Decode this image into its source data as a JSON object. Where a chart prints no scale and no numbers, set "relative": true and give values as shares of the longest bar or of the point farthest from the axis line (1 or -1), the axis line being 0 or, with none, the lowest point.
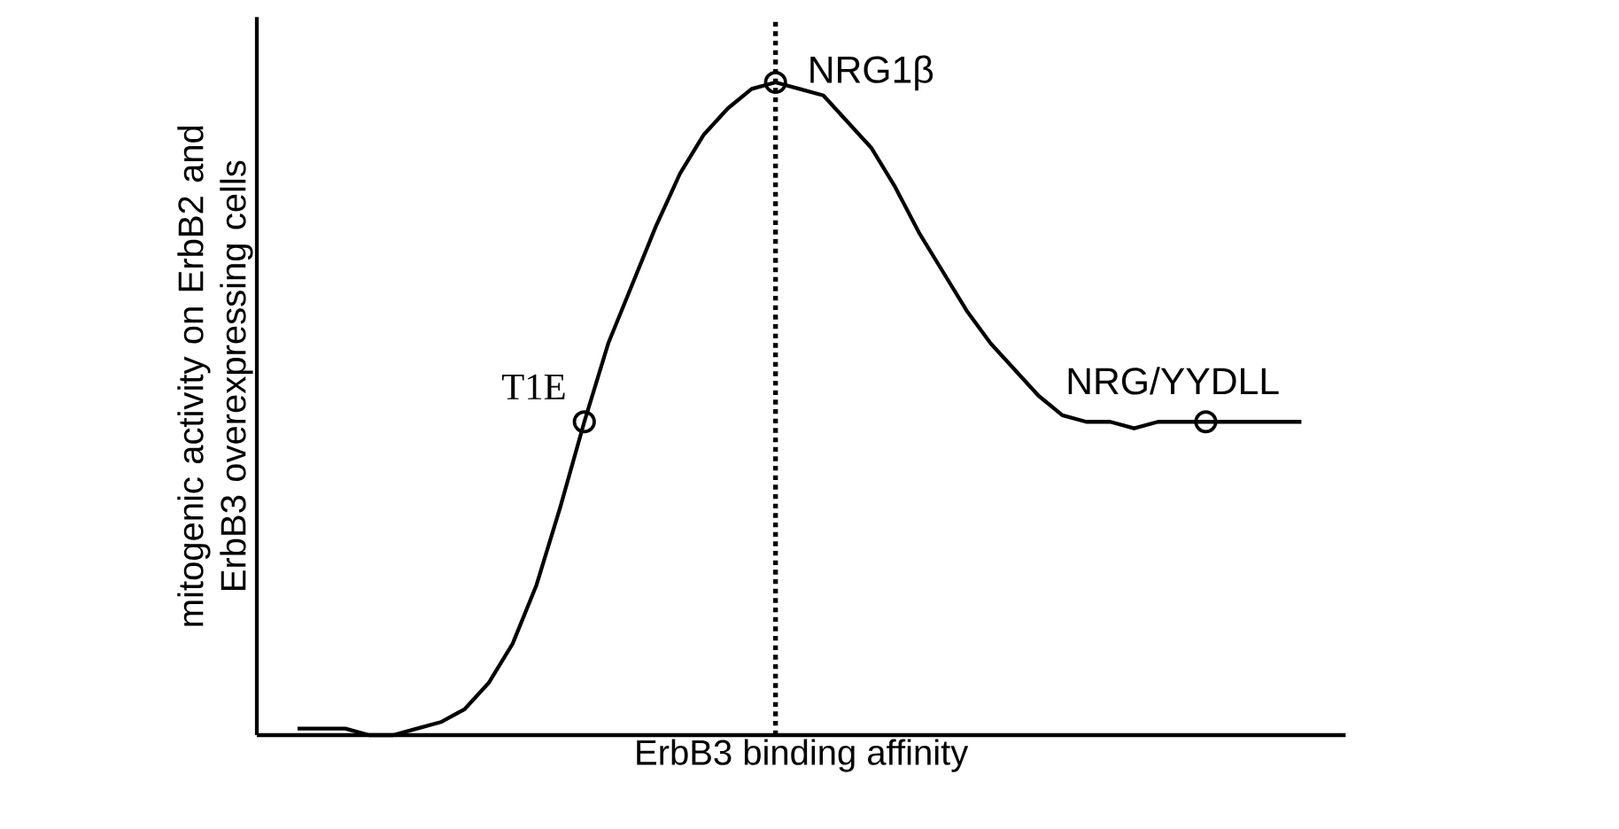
{
  "chart_data": {
    "type": "line",
    "relative": true,
    "xlabel": "ErbB3 binding affinity",
    "ylabel": "mitogenic activity on ErbB2 and ErbB3 overexpressing cells",
    "categories": [
      null,
      null,
      null,
      null,
      null,
      null,
      null,
      null,
      null,
      null,
      null,
      null,
      null,
      null,
      null,
      null,
      null,
      null,
      null,
      null,
      null,
      null,
      null,
      null,
      null,
      null,
      null,
      null,
      null,
      null,
      null,
      null,
      null,
      null,
      null,
      null,
      null,
      null,
      null,
      null,
      null,
      null,
      null
    ],
    "series": [
      {
        "color": "#000000",
        "marker": "none",
        "values": [
          0.01,
          0.01,
          0.01,
          0.0,
          0.0,
          0.01,
          0.02,
          0.04,
          0.08,
          0.14,
          0.23,
          0.35,
          0.48,
          0.6,
          0.69,
          0.78,
          0.86,
          0.92,
          0.96,
          0.99,
          1,
          0.99,
          0.98,
          0.94,
          0.9,
          0.84,
          0.77,
          0.71,
          0.65,
          0.6,
          0.56,
          0.52,
          0.49,
          0.48,
          0.48,
          0.47,
          0.48,
          0.48,
          0.48,
          0.48,
          0.48,
          0.48,
          0.48
        ]
      },
      {
        "name": "T1E",
        "color": "#000000",
        "marker": "circle",
        "values": [
          null,
          null,
          null,
          null,
          null,
          null,
          null,
          null,
          null,
          null,
          null,
          null,
          0.48,
          null,
          null,
          null,
          null,
          null,
          null,
          null,
          null,
          null,
          null,
          null,
          null,
          null,
          null,
          null,
          null,
          null,
          null,
          null,
          null,
          null,
          null,
          null,
          null,
          null,
          null,
          null,
          null,
          null,
          null
        ]
      },
      {
        "name": "NRG1β",
        "color": "#000000",
        "marker": "circle",
        "values": [
          null,
          null,
          null,
          null,
          null,
          null,
          null,
          null,
          null,
          null,
          null,
          null,
          null,
          null,
          null,
          null,
          null,
          null,
          null,
          null,
          1,
          null,
          null,
          null,
          null,
          null,
          null,
          null,
          null,
          null,
          null,
          null,
          null,
          null,
          null,
          null,
          null,
          null,
          null,
          null,
          null,
          null,
          null
        ]
      },
      {
        "name": "NRG/YYDLL",
        "color": "#000000",
        "marker": "circle",
        "values": [
          null,
          null,
          null,
          null,
          null,
          null,
          null,
          null,
          null,
          null,
          null,
          null,
          null,
          null,
          null,
          null,
          null,
          null,
          null,
          null,
          null,
          null,
          null,
          null,
          null,
          null,
          null,
          null,
          null,
          null,
          null,
          null,
          null,
          null,
          null,
          null,
          null,
          null,
          0.48,
          null,
          null,
          null,
          null
        ]
      }
    ]
  }
}
